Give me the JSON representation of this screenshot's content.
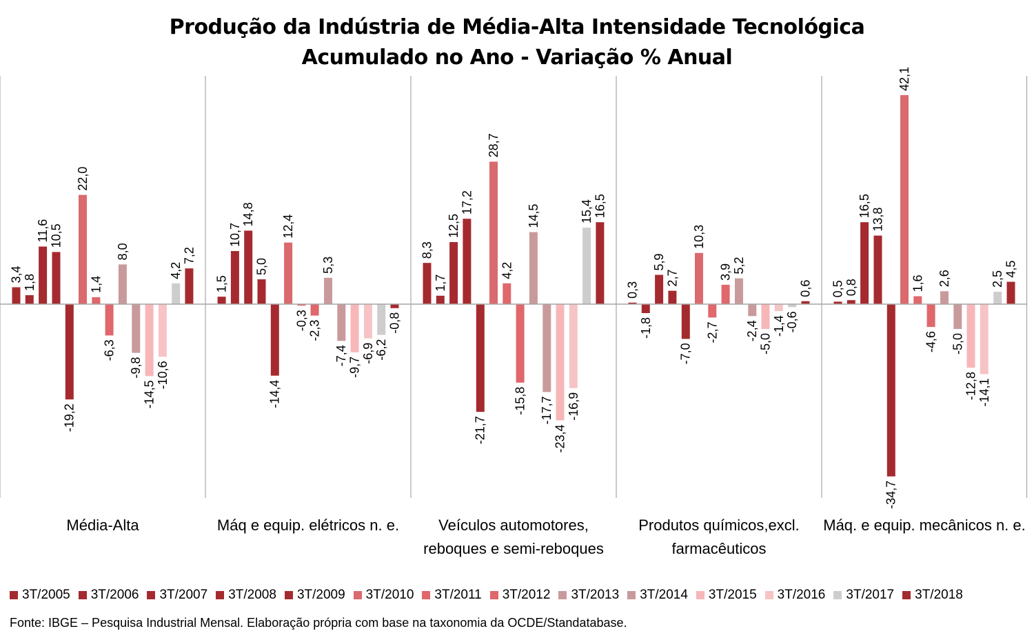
{
  "chart_data": {
    "type": "bar",
    "title": "Produção da Indústria de Média-Alta Intensidade Tecnológica",
    "subtitle": "Acumulado no Ano - Variação % Anual",
    "categories": [
      "Média-Alta",
      "Máq e equip. elétricos n. e.",
      "Veículos automotores, reboques e semi-reboques",
      "Produtos químicos,excl. farmacêuticos",
      "Máq. e equip. mecânicos n. e."
    ],
    "series": [
      {
        "name": "3T/2005",
        "color": "#a52a2f",
        "values": [
          3.4,
          1.5,
          8.3,
          0.3,
          0.5
        ],
        "labels": [
          "3,4",
          "1,5",
          "8,3",
          "0,3",
          "0,5"
        ]
      },
      {
        "name": "3T/2006",
        "color": "#a52a2f",
        "values": [
          1.8,
          10.7,
          1.7,
          -1.8,
          0.8
        ],
        "labels": [
          "1,8",
          "10,7",
          "1,7",
          "-1,8",
          "0,8"
        ]
      },
      {
        "name": "3T/2007",
        "color": "#a52a2f",
        "values": [
          11.6,
          14.8,
          12.5,
          5.9,
          16.5
        ],
        "labels": [
          "11,6",
          "14,8",
          "12,5",
          "5,9",
          "16,5"
        ]
      },
      {
        "name": "3T/2008",
        "color": "#a52a2f",
        "values": [
          10.5,
          5.0,
          17.2,
          2.7,
          13.8
        ],
        "labels": [
          "10,5",
          "5,0",
          "17,2",
          "2,7",
          "13,8"
        ]
      },
      {
        "name": "3T/2009",
        "color": "#a52a2f",
        "values": [
          -19.2,
          -14.4,
          -21.7,
          -7.0,
          -34.7
        ],
        "labels": [
          "-19,2",
          "-14,4",
          "-21,7",
          "-7,0",
          "-34,7"
        ]
      },
      {
        "name": "3T/2010",
        "color": "#da6a6e",
        "values": [
          22.0,
          12.4,
          28.7,
          10.3,
          42.1
        ],
        "labels": [
          "22,0",
          "12,4",
          "28,7",
          "10,3",
          "42,1"
        ]
      },
      {
        "name": "3T/2011",
        "color": "#e0676b",
        "values": [
          1.4,
          -0.3,
          4.2,
          -2.7,
          1.6
        ],
        "labels": [
          "1,4",
          "-0,3",
          "4,2",
          "-2,7",
          "1,6"
        ]
      },
      {
        "name": "3T/2012",
        "color": "#e0676b",
        "values": [
          -6.3,
          -2.3,
          -15.8,
          3.9,
          -4.6
        ],
        "labels": [
          "-6,3",
          "-2,3",
          "-15,8",
          "3,9",
          "-4,6"
        ]
      },
      {
        "name": "3T/2013",
        "color": "#c99a9c",
        "values": [
          8.0,
          5.3,
          14.5,
          5.2,
          2.6
        ],
        "labels": [
          "8,0",
          "5,3",
          "14,5",
          "5,2",
          "2,6"
        ]
      },
      {
        "name": "3T/2014",
        "color": "#c99a9c",
        "values": [
          -9.8,
          -7.4,
          -17.7,
          -2.4,
          -5.0
        ],
        "labels": [
          "-9,8",
          "-7,4",
          "-17,7",
          "-2,4",
          "-5,0"
        ]
      },
      {
        "name": "3T/2015",
        "color": "#f7b7b9",
        "values": [
          -14.5,
          -9.7,
          -23.4,
          -5.0,
          -12.8
        ],
        "labels": [
          "-14,5",
          "-9,7",
          "-23,4",
          "-5,0",
          "-12,8"
        ]
      },
      {
        "name": "3T/2016",
        "color": "#f6c4c5",
        "values": [
          -10.6,
          -6.9,
          -16.9,
          -1.4,
          -14.1
        ],
        "labels": [
          "-10,6",
          "-6,9",
          "-16,9",
          "-1,4",
          "-14,1"
        ]
      },
      {
        "name": "3T/2017",
        "color": "#cdcdcd",
        "values": [
          4.2,
          -6.2,
          15.4,
          -0.6,
          2.5
        ],
        "labels": [
          "4,2",
          "-6,2",
          "15,4",
          "-0,6",
          "2,5"
        ]
      },
      {
        "name": "3T/2018",
        "color": "#a52a2f",
        "values": [
          7.2,
          -0.8,
          16.5,
          0.6,
          4.5
        ],
        "labels": [
          "7,2",
          "-0,8",
          "16,5",
          "0,6",
          "4,5"
        ]
      }
    ],
    "ylim": [
      -38.5,
      45
    ],
    "grid": false,
    "legend_position": "bottom",
    "source": "Fonte: IBGE – Pesquisa Industrial Mensal. Elaboração própria com base na taxonomia da OCDE/Standatabase."
  }
}
